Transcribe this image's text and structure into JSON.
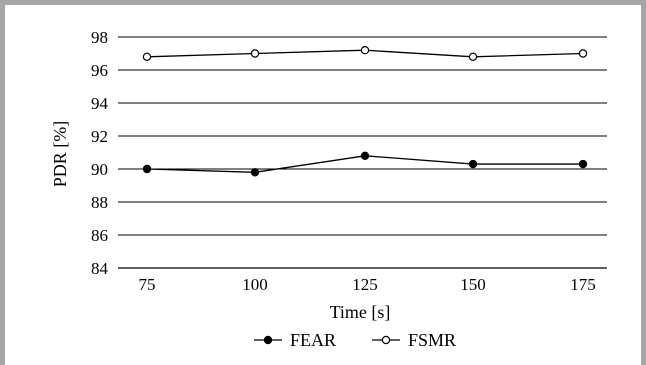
{
  "chart_data": {
    "type": "line",
    "xlabel": "Time [s]",
    "ylabel": "PDR [%]",
    "x": [
      75,
      100,
      125,
      150,
      175
    ],
    "xticks": [
      "75",
      "100",
      "125",
      "150",
      "175"
    ],
    "ylim": [
      84,
      98
    ],
    "yticks": [
      "84",
      "86",
      "88",
      "90",
      "92",
      "94",
      "96",
      "98"
    ],
    "grid": "horizontal",
    "legend_position": "bottom",
    "series": [
      {
        "name": "FEAR",
        "marker": "filled-circle",
        "color": "#000000",
        "values": [
          90.0,
          89.8,
          90.8,
          90.3,
          90.3
        ]
      },
      {
        "name": "FSMR",
        "marker": "open-circle",
        "color": "#000000",
        "values": [
          96.8,
          97.0,
          97.2,
          96.8,
          97.0
        ]
      }
    ]
  }
}
